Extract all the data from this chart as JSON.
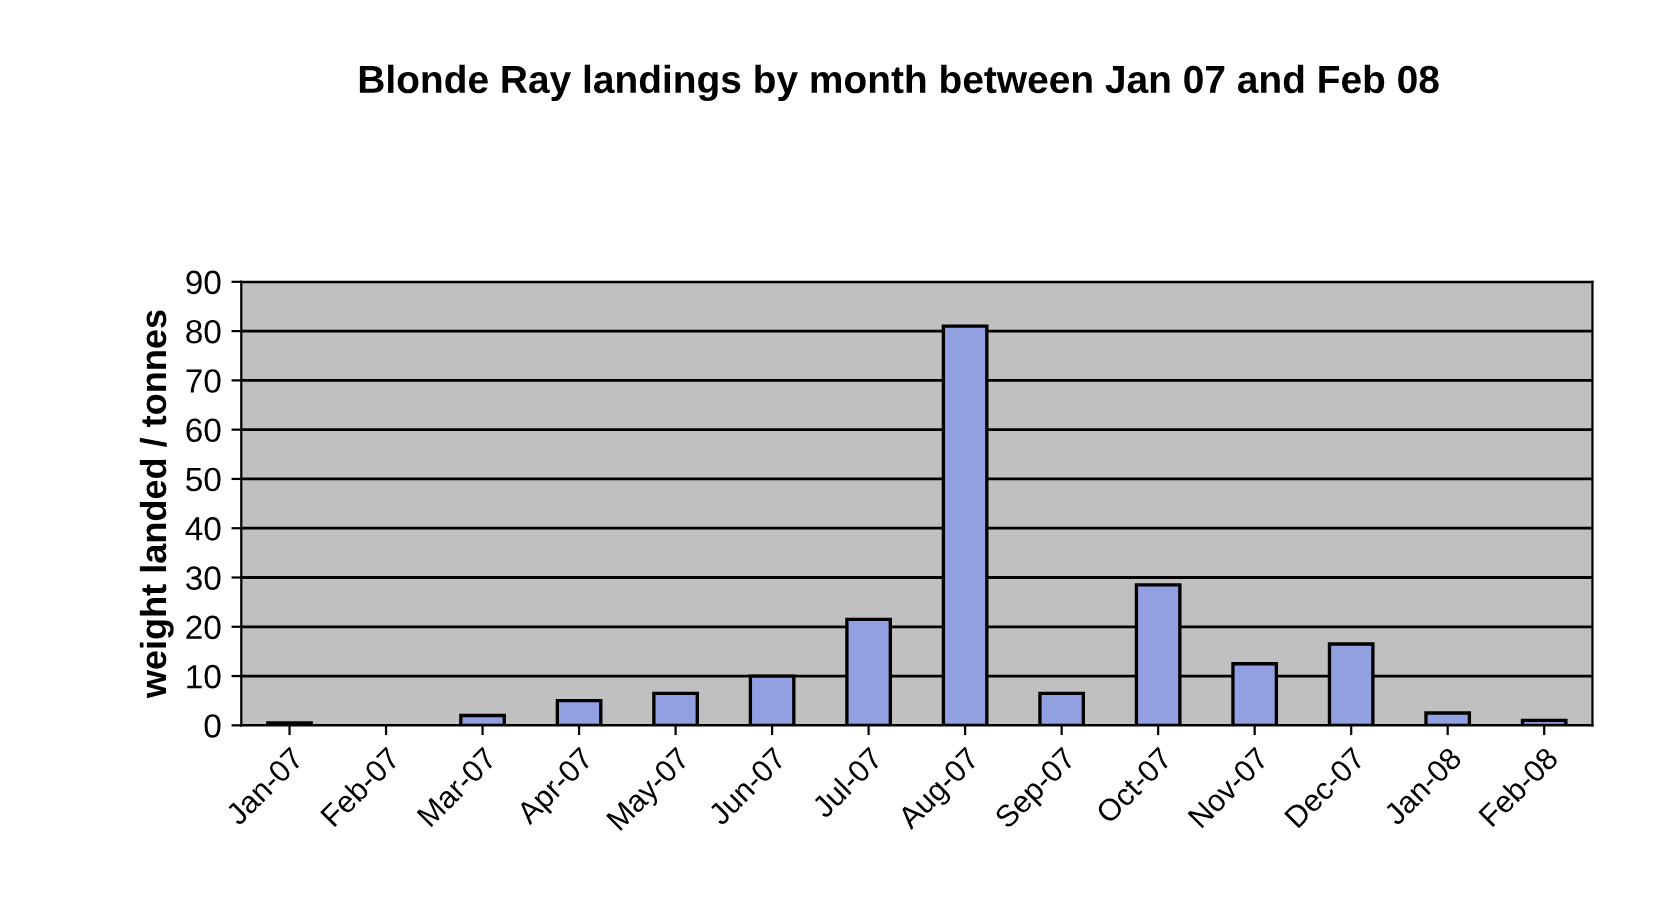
{
  "chart_data": {
    "type": "bar",
    "title": "Blonde Ray landings by month between Jan 07 and Feb 08",
    "ylabel": "weight landed / tonnes",
    "categories": [
      "Jan-07",
      "Feb-07",
      "Mar-07",
      "Apr-07",
      "May-07",
      "Jun-07",
      "Jul-07",
      "Aug-07",
      "Sep-07",
      "Oct-07",
      "Nov-07",
      "Dec-07",
      "Jan-08",
      "Feb-08"
    ],
    "values": [
      0.5,
      null,
      2,
      5,
      6.5,
      10,
      21.5,
      81,
      6.5,
      28.5,
      12.5,
      16.5,
      2.5,
      1
    ],
    "color": "#929fe0",
    "ylim": [
      0,
      90
    ],
    "yticks": [
      0,
      10,
      20,
      30,
      40,
      50,
      60,
      70,
      80,
      90
    ],
    "grid": "y"
  }
}
